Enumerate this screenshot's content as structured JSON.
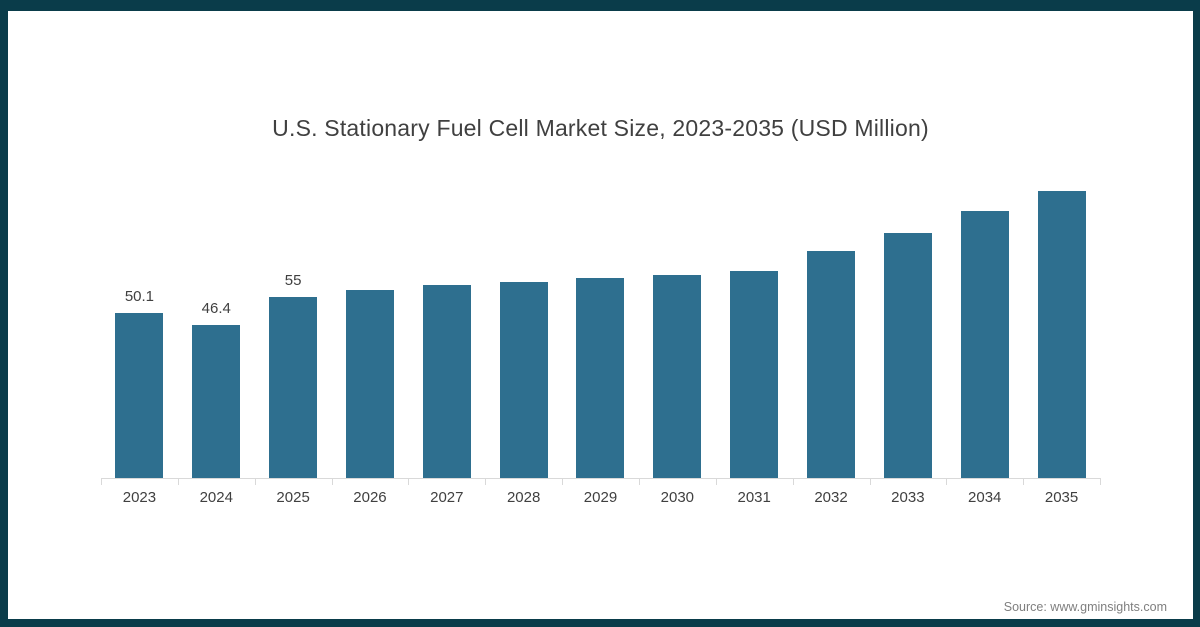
{
  "frame": {
    "border_color": "#0a3c4a",
    "background": "#ffffff"
  },
  "chart_data": {
    "type": "bar",
    "title": "U.S. Stationary Fuel Cell Market Size, 2023-2035 (USD Million)",
    "categories": [
      "2023",
      "2024",
      "2025",
      "2026",
      "2027",
      "2028",
      "2029",
      "2030",
      "2031",
      "2032",
      "2033",
      "2034",
      "2035"
    ],
    "values": [
      50.1,
      46.4,
      55,
      57.2,
      58.5,
      59.5,
      60.9,
      61.6,
      63.0,
      68.9,
      74.5,
      81.0,
      87.3
    ],
    "data_labels": [
      "50.1",
      "46.4",
      "55",
      "",
      "",
      "",
      "",
      "",
      "",
      "",
      "",
      "",
      ""
    ],
    "xlabel": "",
    "ylabel": "",
    "ylim": [
      0,
      90.5
    ],
    "grid": false,
    "legend": false,
    "bar_color": "#2e6f8f",
    "axis_color": "#d9d9d9",
    "text_color": "#404040"
  },
  "footer": {
    "source": "Source: www.gminsights.com"
  }
}
